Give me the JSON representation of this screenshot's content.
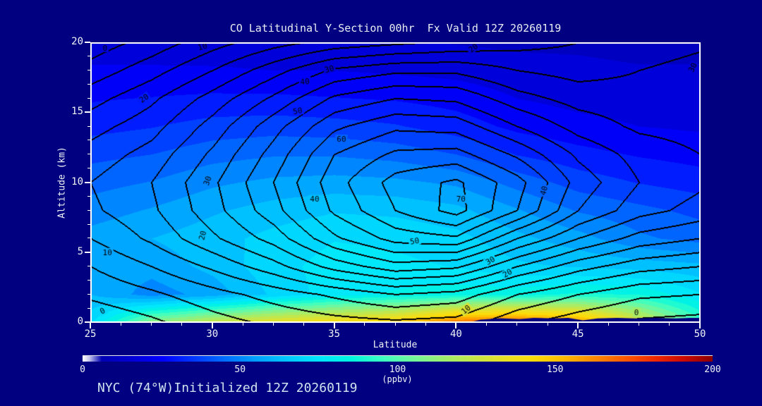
{
  "header": {
    "title": "CO Latitudinal Y-Section 00hr  Fx Valid 12Z 20260119"
  },
  "footer": {
    "annotation": "NYC (74°W)Initialized 12Z 20260119"
  },
  "colors": {
    "background": "#000080",
    "frame": "#ffffff",
    "text": "#f0f3f6",
    "footer_text": "#cfe3ee",
    "contour_line": "#000000"
  },
  "chart_data": {
    "type": "heatmap",
    "subtype": "filled-contour-cross-section",
    "title": "CO Latitudinal Y-Section 00hr  Fx Valid 12Z 20260119",
    "xlabel": "Latitude",
    "ylabel": "Altitude (km)",
    "xlim": [
      25,
      50
    ],
    "ylim": [
      0,
      20
    ],
    "grid": false,
    "x_ticks_major": [
      25,
      30,
      35,
      40,
      45,
      50
    ],
    "x_tick_minor_step": 1.25,
    "y_ticks_major": [
      0,
      5,
      10,
      15,
      20
    ],
    "y_tick_minor_step": 1,
    "lat": [
      25,
      27.5,
      30,
      32.5,
      35,
      37.5,
      40,
      42.5,
      45,
      47.5,
      50
    ],
    "alt": [
      20,
      18,
      16,
      14,
      12,
      10,
      8,
      6,
      4,
      2,
      0
    ],
    "fill_units": "ppbv",
    "fill_values_ppbv": [
      [
        16,
        16,
        15,
        15,
        14,
        14,
        13,
        12,
        12,
        11,
        11
      ],
      [
        21,
        21,
        21,
        20,
        20,
        19,
        18,
        16,
        15,
        14,
        14
      ],
      [
        26,
        27,
        28,
        28,
        27,
        26,
        24,
        20,
        18,
        17,
        16
      ],
      [
        31,
        33,
        36,
        37,
        36,
        34,
        30,
        25,
        22,
        20,
        19
      ],
      [
        38,
        40,
        44,
        46,
        46,
        44,
        40,
        33,
        29,
        26,
        24
      ],
      [
        44,
        47,
        52,
        55,
        56,
        55,
        52,
        44,
        37,
        33,
        30
      ],
      [
        50,
        54,
        59,
        63,
        66,
        65,
        62,
        54,
        46,
        42,
        38
      ],
      [
        56,
        60,
        64,
        69,
        73,
        72,
        69,
        62,
        56,
        48,
        44
      ],
      [
        58,
        56,
        62,
        71,
        76,
        75,
        73,
        68,
        66,
        64,
        62
      ],
      [
        60,
        50,
        56,
        68,
        77,
        81,
        84,
        84,
        88,
        86,
        74
      ],
      [
        72,
        112,
        126,
        136,
        142,
        148,
        168,
        172,
        162,
        132,
        96
      ]
    ],
    "line_contour_interval": 5,
    "line_values": [
      [
        -3,
        2,
        8,
        13,
        17,
        19,
        21,
        23,
        25,
        27,
        29
      ],
      [
        2,
        8,
        15,
        23,
        31,
        34,
        34,
        30,
        28,
        30,
        32
      ],
      [
        8,
        14,
        22,
        31,
        41,
        45,
        44,
        37,
        33,
        32,
        33
      ],
      [
        13,
        18,
        27,
        38,
        49,
        54,
        53,
        45,
        38,
        34,
        33
      ],
      [
        17,
        22,
        31,
        42,
        55,
        61,
        62,
        54,
        44,
        38,
        35
      ],
      [
        20,
        25,
        34,
        45,
        58,
        67,
        71,
        62,
        48,
        40,
        36
      ],
      [
        19,
        24,
        33,
        43,
        56,
        65,
        72,
        60,
        45,
        37,
        33
      ],
      [
        15,
        21,
        29,
        37,
        49,
        57,
        59,
        45,
        35,
        28,
        25
      ],
      [
        10,
        15,
        21,
        28,
        37,
        43,
        41,
        30,
        22,
        17,
        15
      ],
      [
        6,
        9,
        13,
        17,
        21,
        25,
        23,
        15,
        10,
        6,
        5
      ],
      [
        1,
        4,
        8,
        11,
        13,
        14,
        13,
        6,
        2,
        -1,
        -2
      ]
    ],
    "contour_labels": [
      {
        "value": 0,
        "lat": 25.6,
        "alt": 19.6,
        "rot": 0
      },
      {
        "value": 10,
        "lat": 29.6,
        "alt": 19.7,
        "rot": -15
      },
      {
        "value": 20,
        "lat": 40.7,
        "alt": 19.6,
        "rot": -35
      },
      {
        "value": 30,
        "lat": 49.7,
        "alt": 18.2,
        "rot": -65
      },
      {
        "value": 20,
        "lat": 27.2,
        "alt": 16.0,
        "rot": -35
      },
      {
        "value": 30,
        "lat": 34.8,
        "alt": 18.1,
        "rot": -15
      },
      {
        "value": 40,
        "lat": 33.8,
        "alt": 17.2,
        "rot": -5
      },
      {
        "value": 50,
        "lat": 33.5,
        "alt": 15.1,
        "rot": -10
      },
      {
        "value": 60,
        "lat": 35.3,
        "alt": 13.1,
        "rot": 0
      },
      {
        "value": 30,
        "lat": 29.8,
        "alt": 10.1,
        "rot": -70
      },
      {
        "value": 40,
        "lat": 34.2,
        "alt": 8.8,
        "rot": 0
      },
      {
        "value": 70,
        "lat": 40.2,
        "alt": 8.8,
        "rot": 0
      },
      {
        "value": 40,
        "lat": 43.6,
        "alt": 9.4,
        "rot": -75
      },
      {
        "value": 20,
        "lat": 29.6,
        "alt": 6.2,
        "rot": -75
      },
      {
        "value": 10,
        "lat": 25.7,
        "alt": 5.0,
        "rot": 0
      },
      {
        "value": 50,
        "lat": 38.3,
        "alt": 5.8,
        "rot": -10
      },
      {
        "value": 30,
        "lat": 41.4,
        "alt": 4.4,
        "rot": -30
      },
      {
        "value": 20,
        "lat": 42.1,
        "alt": 3.5,
        "rot": -30
      },
      {
        "value": 10,
        "lat": 40.4,
        "alt": 0.9,
        "rot": -40
      },
      {
        "value": 0,
        "lat": 25.5,
        "alt": 0.8,
        "rot": -30
      },
      {
        "value": 0,
        "lat": 47.4,
        "alt": 0.7,
        "rot": 0
      }
    ],
    "terrain_profile": [
      [
        40.6,
        0.0
      ],
      [
        41.0,
        0.18
      ],
      [
        41.8,
        0.28
      ],
      [
        42.6,
        0.22
      ],
      [
        43.2,
        0.3
      ],
      [
        44.0,
        0.26
      ],
      [
        44.6,
        0.3
      ],
      [
        45.2,
        0.12
      ],
      [
        45.8,
        0.26
      ],
      [
        46.6,
        0.3
      ],
      [
        47.4,
        0.26
      ],
      [
        48.2,
        0.3
      ],
      [
        49.0,
        0.26
      ],
      [
        49.6,
        0.3
      ],
      [
        50.0,
        0.3
      ]
    ],
    "colorbar": {
      "min": 0,
      "max": 200,
      "ticks": [
        0,
        50,
        100,
        150,
        200
      ],
      "unit_label": "(ppbv)",
      "fill_band_count": 30,
      "stops": [
        [
          0,
          "#ffffff"
        ],
        [
          2,
          "#c8c8f0"
        ],
        [
          6,
          "#0000b4"
        ],
        [
          15,
          "#0000d2"
        ],
        [
          25,
          "#0000ff"
        ],
        [
          35,
          "#0037ff"
        ],
        [
          45,
          "#006eff"
        ],
        [
          55,
          "#00a0ff"
        ],
        [
          65,
          "#00c8ff"
        ],
        [
          75,
          "#00e6ff"
        ],
        [
          85,
          "#00f5e1"
        ],
        [
          95,
          "#3cffc3"
        ],
        [
          105,
          "#73f79b"
        ],
        [
          115,
          "#a0ee6e"
        ],
        [
          125,
          "#c8e646"
        ],
        [
          135,
          "#ebe023"
        ],
        [
          143,
          "#fbdc0a"
        ],
        [
          152,
          "#ffbe00"
        ],
        [
          162,
          "#ff8c00"
        ],
        [
          172,
          "#ff5a00"
        ],
        [
          182,
          "#f02800"
        ],
        [
          191,
          "#cc0a00"
        ],
        [
          200,
          "#8c0000"
        ]
      ]
    }
  }
}
